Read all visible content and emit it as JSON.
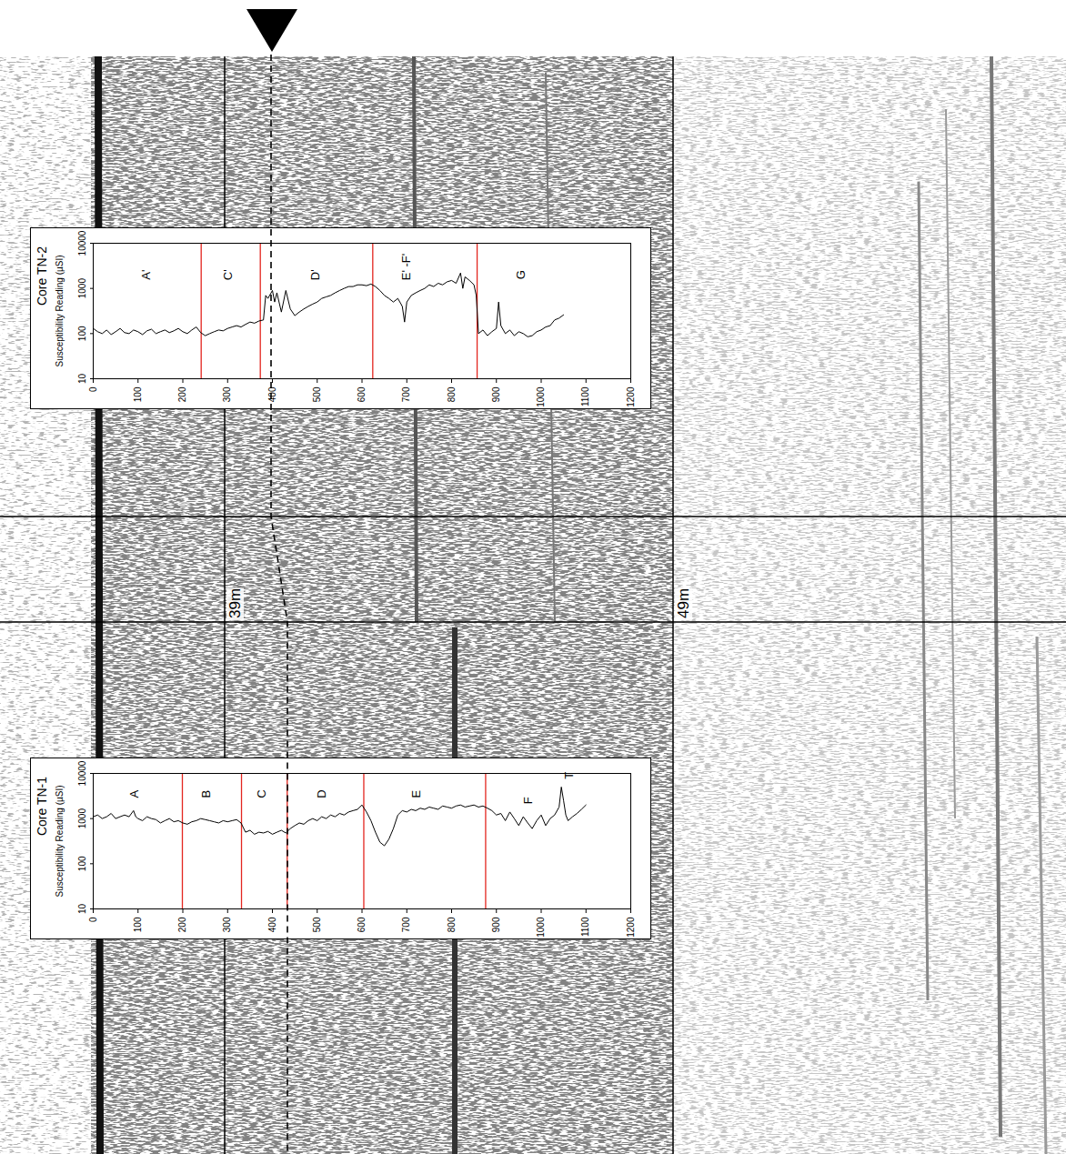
{
  "chart_data": [
    {
      "type": "line",
      "title": "Core TN-2",
      "ylabel": "Susceptibility Reading (µSI)",
      "color": "#000000",
      "log": "y",
      "xlim": [
        0,
        1200
      ],
      "xticks": [
        0,
        100,
        200,
        300,
        400,
        500,
        600,
        700,
        800,
        900,
        1000,
        1100,
        1200
      ],
      "ylim": [
        10,
        10000
      ],
      "yticks": [
        10,
        100,
        1000,
        10000
      ],
      "x": [
        0,
        10,
        20,
        30,
        40,
        50,
        60,
        70,
        80,
        90,
        100,
        110,
        120,
        130,
        140,
        150,
        160,
        170,
        180,
        190,
        200,
        210,
        220,
        230,
        240,
        250,
        260,
        270,
        280,
        290,
        300,
        310,
        320,
        330,
        340,
        350,
        360,
        370,
        380,
        385,
        390,
        400,
        405,
        410,
        420,
        430,
        440,
        450,
        460,
        470,
        480,
        490,
        500,
        510,
        520,
        530,
        540,
        550,
        560,
        570,
        580,
        590,
        600,
        610,
        620,
        630,
        640,
        650,
        660,
        670,
        680,
        690,
        695,
        700,
        710,
        720,
        730,
        740,
        750,
        760,
        770,
        780,
        790,
        800,
        810,
        820,
        825,
        830,
        840,
        850,
        855,
        860,
        870,
        880,
        890,
        900,
        905,
        910,
        920,
        930,
        940,
        950,
        960,
        970,
        980,
        990,
        1000,
        1010,
        1020,
        1030,
        1040,
        1050
      ],
      "values": [
        130,
        110,
        100,
        120,
        95,
        110,
        130,
        105,
        100,
        120,
        110,
        95,
        115,
        125,
        100,
        110,
        120,
        105,
        115,
        130,
        110,
        100,
        120,
        140,
        105,
        90,
        100,
        110,
        120,
        115,
        130,
        140,
        150,
        140,
        160,
        180,
        170,
        190,
        200,
        700,
        600,
        900,
        500,
        800,
        300,
        900,
        350,
        250,
        300,
        350,
        400,
        450,
        500,
        600,
        650,
        700,
        800,
        900,
        1000,
        1100,
        1100,
        1200,
        1200,
        1150,
        1250,
        1100,
        900,
        700,
        600,
        500,
        600,
        400,
        180,
        500,
        700,
        800,
        900,
        1000,
        1200,
        1100,
        1300,
        1200,
        1400,
        1500,
        1300,
        2200,
        1000,
        1800,
        1500,
        1200,
        700,
        100,
        120,
        90,
        110,
        130,
        500,
        150,
        100,
        120,
        90,
        110,
        100,
        85,
        90,
        110,
        120,
        140,
        150,
        200,
        220,
        260
      ],
      "boundaries": [
        241,
        373,
        624,
        857
      ],
      "annotations": [
        {
          "text": "A'",
          "x": 118,
          "y": 2000
        },
        {
          "text": "C'",
          "x": 302,
          "y": 2000
        },
        {
          "text": "D'",
          "x": 496,
          "y": 2000
        },
        {
          "text": "E' -F'",
          "x": 700,
          "y": 3000
        },
        {
          "text": "G",
          "x": 955,
          "y": 2000
        }
      ]
    },
    {
      "type": "line",
      "title": "Core TN-1",
      "ylabel": "Susceptibility Reading (µSI)",
      "color": "#000000",
      "log": "y",
      "xlim": [
        0,
        1200
      ],
      "xticks": [
        0,
        100,
        200,
        300,
        400,
        500,
        600,
        700,
        800,
        900,
        1000,
        1100,
        1200
      ],
      "ylim": [
        10,
        10000
      ],
      "yticks": [
        10,
        100,
        1000,
        10000
      ],
      "x": [
        0,
        10,
        20,
        30,
        40,
        50,
        60,
        70,
        80,
        90,
        95,
        100,
        110,
        120,
        130,
        140,
        150,
        160,
        170,
        180,
        190,
        200,
        210,
        220,
        230,
        240,
        250,
        260,
        270,
        280,
        290,
        300,
        310,
        320,
        330,
        340,
        350,
        360,
        370,
        380,
        390,
        400,
        410,
        420,
        430,
        440,
        450,
        460,
        470,
        480,
        490,
        500,
        510,
        520,
        530,
        540,
        550,
        560,
        570,
        580,
        590,
        600,
        610,
        620,
        630,
        640,
        650,
        660,
        670,
        680,
        690,
        700,
        710,
        720,
        730,
        740,
        750,
        760,
        770,
        780,
        790,
        800,
        810,
        820,
        830,
        840,
        850,
        860,
        870,
        880,
        890,
        900,
        910,
        920,
        930,
        940,
        950,
        960,
        970,
        980,
        990,
        1000,
        1010,
        1020,
        1030,
        1040,
        1045,
        1050,
        1055,
        1060,
        1070,
        1080,
        1090,
        1100
      ],
      "values": [
        1100,
        1200,
        1000,
        1100,
        1300,
        1000,
        1100,
        1200,
        1100,
        1500,
        1100,
        1000,
        900,
        1100,
        1000,
        950,
        800,
        900,
        1000,
        850,
        900,
        800,
        750,
        850,
        900,
        1000,
        950,
        900,
        850,
        800,
        900,
        850,
        900,
        950,
        800,
        500,
        550,
        450,
        500,
        480,
        520,
        450,
        500,
        550,
        480,
        600,
        700,
        800,
        750,
        900,
        1000,
        900,
        1100,
        1000,
        1200,
        1100,
        1300,
        1200,
        1400,
        1500,
        1600,
        2000,
        1400,
        900,
        500,
        300,
        250,
        350,
        600,
        1200,
        1500,
        1400,
        1600,
        1500,
        1700,
        1600,
        1800,
        1700,
        1600,
        1900,
        1800,
        1700,
        1900,
        2000,
        1800,
        1900,
        2000,
        1800,
        1900,
        1700,
        1500,
        1200,
        1300,
        900,
        1400,
        1000,
        700,
        1100,
        800,
        600,
        900,
        1200,
        700,
        1000,
        1200,
        1800,
        5000,
        2500,
        1200,
        900,
        1100,
        1300,
        1600,
        2000
      ],
      "boundaries": [
        199,
        331,
        433,
        604,
        876
      ],
      "annotations": [
        {
          "text": "A",
          "x": 92,
          "y": 3500
        },
        {
          "text": "B",
          "x": 252,
          "y": 3500
        },
        {
          "text": "C",
          "x": 376,
          "y": 3500
        },
        {
          "text": "D",
          "x": 510,
          "y": 3500
        },
        {
          "text": "E",
          "x": 722,
          "y": 3500
        },
        {
          "text": "F",
          "x": 972,
          "y": 2500
        },
        {
          "text": "T",
          "x": 1062,
          "y": 9000
        }
      ]
    }
  ],
  "profile": {
    "depth_markers": [
      {
        "label": "39m",
        "value": 39
      },
      {
        "label": "49m",
        "value": 49
      }
    ]
  }
}
